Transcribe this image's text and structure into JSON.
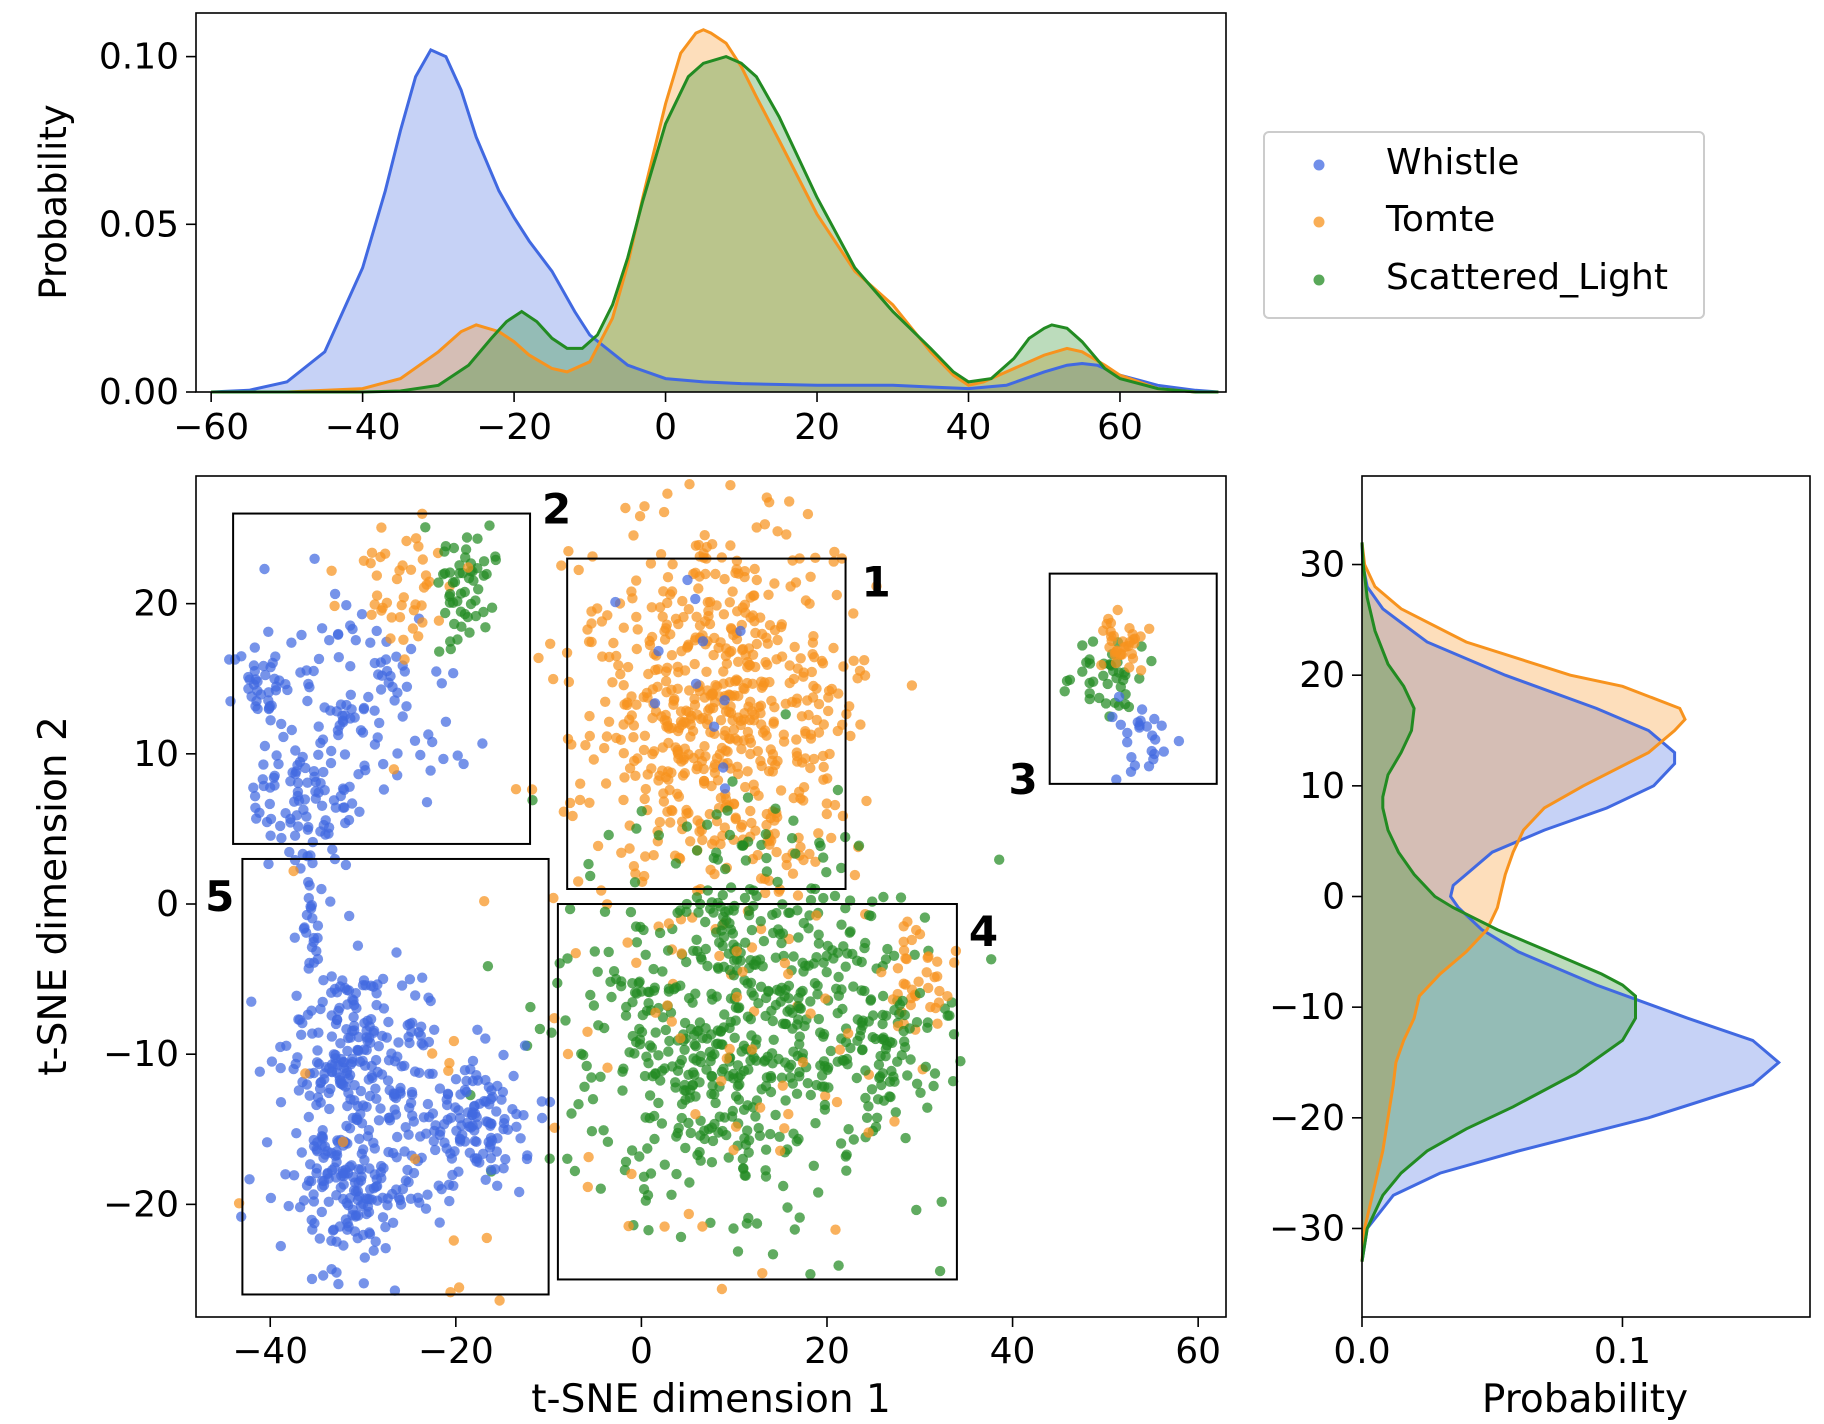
{
  "colors": {
    "whistle": "#4169E1",
    "tomte": "#F7931E",
    "scattered_light": "#228B22"
  },
  "chart_data": [
    {
      "id": "top-kde",
      "type": "area",
      "title": "",
      "xlabel": "",
      "ylabel": "Probability",
      "xlim": [
        -62,
        74
      ],
      "ylim": [
        0,
        0.113
      ],
      "xticks": [
        -60,
        -40,
        -20,
        0,
        20,
        40,
        60
      ],
      "xtick_labels": [
        "−60",
        "−40",
        "−20",
        "0",
        "20",
        "40",
        "60"
      ],
      "yticks": [
        0.0,
        0.05,
        0.1
      ],
      "ytick_labels": [
        "0.00",
        "0.05",
        "0.10"
      ],
      "series": [
        {
          "name": "Whistle",
          "x": [
            -60,
            -55,
            -50,
            -45,
            -40,
            -37,
            -35,
            -33,
            -31,
            -29,
            -27,
            -25,
            -22,
            -20,
            -18,
            -15,
            -12,
            -10,
            -5,
            0,
            5,
            10,
            20,
            30,
            35,
            40,
            45,
            50,
            53,
            55,
            57,
            60,
            65,
            70,
            73
          ],
          "values": [
            0.0,
            0.0005,
            0.003,
            0.012,
            0.037,
            0.06,
            0.078,
            0.094,
            0.102,
            0.1,
            0.09,
            0.076,
            0.06,
            0.052,
            0.045,
            0.036,
            0.024,
            0.017,
            0.008,
            0.004,
            0.003,
            0.0025,
            0.002,
            0.002,
            0.0015,
            0.001,
            0.002,
            0.006,
            0.008,
            0.0085,
            0.008,
            0.005,
            0.002,
            0.0005,
            0.0
          ]
        },
        {
          "name": "Tomte",
          "x": [
            -60,
            -50,
            -40,
            -35,
            -30,
            -27,
            -25,
            -22,
            -20,
            -18,
            -15,
            -13,
            -10,
            -7,
            -5,
            -3,
            0,
            2,
            4,
            5,
            6,
            8,
            10,
            12,
            15,
            20,
            25,
            30,
            35,
            38,
            40,
            42,
            45,
            50,
            53,
            55,
            58,
            60,
            65,
            70,
            73
          ],
          "values": [
            0.0,
            0.0,
            0.001,
            0.004,
            0.012,
            0.018,
            0.02,
            0.018,
            0.015,
            0.011,
            0.007,
            0.006,
            0.009,
            0.022,
            0.038,
            0.058,
            0.086,
            0.101,
            0.107,
            0.108,
            0.107,
            0.104,
            0.097,
            0.088,
            0.075,
            0.053,
            0.036,
            0.026,
            0.012,
            0.005,
            0.002,
            0.003,
            0.006,
            0.011,
            0.013,
            0.012,
            0.008,
            0.005,
            0.001,
            0.0,
            0.0
          ]
        },
        {
          "name": "Scattered_Light",
          "x": [
            -60,
            -50,
            -40,
            -35,
            -30,
            -26,
            -23,
            -21,
            -19,
            -17,
            -15,
            -13,
            -11,
            -9,
            -7,
            -5,
            -3,
            0,
            3,
            5,
            8,
            10,
            12,
            15,
            20,
            25,
            30,
            35,
            38,
            40,
            43,
            46,
            48,
            50,
            51,
            53,
            55,
            58,
            60,
            65,
            70,
            73
          ],
          "values": [
            0.0,
            0.0,
            0.0,
            0.0003,
            0.002,
            0.008,
            0.016,
            0.021,
            0.024,
            0.021,
            0.016,
            0.013,
            0.013,
            0.017,
            0.026,
            0.04,
            0.057,
            0.08,
            0.094,
            0.098,
            0.1,
            0.098,
            0.094,
            0.082,
            0.058,
            0.037,
            0.024,
            0.013,
            0.006,
            0.003,
            0.004,
            0.01,
            0.016,
            0.019,
            0.02,
            0.019,
            0.015,
            0.007,
            0.004,
            0.001,
            0.0,
            0.0
          ]
        }
      ]
    },
    {
      "id": "scatter",
      "type": "scatter",
      "title": "",
      "xlabel": "t-SNE dimension 1",
      "ylabel": "t-SNE dimension 2",
      "xlim": [
        -48,
        63
      ],
      "ylim": [
        -27.5,
        28.5
      ],
      "xticks": [
        -40,
        -20,
        0,
        20,
        40,
        60
      ],
      "xtick_labels": [
        "−40",
        "−20",
        "0",
        "20",
        "40",
        "60"
      ],
      "yticks": [
        -20,
        -10,
        0,
        10,
        20
      ],
      "ytick_labels": [
        "−20",
        "−10",
        "0",
        "10",
        "20"
      ],
      "clusters": [
        {
          "series": "Whistle",
          "cx": -30,
          "cy": 13,
          "sx": 5,
          "sy": 4,
          "n": 120,
          "seed": 11
        },
        {
          "series": "Whistle",
          "cx": -37,
          "cy": 7,
          "sx": 2.8,
          "sy": 2.2,
          "n": 70,
          "seed": 12
        },
        {
          "series": "Whistle",
          "cx": -41,
          "cy": 14.5,
          "sx": 1.2,
          "sy": 1.3,
          "n": 35,
          "seed": 13
        },
        {
          "series": "Tomte",
          "cx": -26,
          "cy": 21,
          "sx": 2.5,
          "sy": 2.2,
          "n": 45,
          "seed": 14
        },
        {
          "series": "Scattered_Light",
          "cx": -19,
          "cy": 21,
          "sx": 1.8,
          "sy": 2.2,
          "n": 55,
          "seed": 15
        },
        {
          "series": "Tomte",
          "cx": 8,
          "cy": 13,
          "sx": 7.5,
          "sy": 6.5,
          "n": 650,
          "seed": 16
        },
        {
          "series": "Whistle",
          "cx": 6,
          "cy": 15,
          "sx": 6,
          "sy": 5,
          "n": 12,
          "seed": 17
        },
        {
          "series": "Scattered_Light",
          "cx": 11,
          "cy": -8,
          "sx": 9,
          "sy": 6.5,
          "n": 640,
          "seed": 18
        },
        {
          "series": "Tomte",
          "cx": 30,
          "cy": -5,
          "sx": 2,
          "sy": 2,
          "n": 40,
          "seed": 19
        },
        {
          "series": "Tomte",
          "cx": 8,
          "cy": -10,
          "sx": 11,
          "sy": 8,
          "n": 55,
          "seed": 20
        },
        {
          "series": "Scattered_Light",
          "cx": 26,
          "cy": -9,
          "sx": 3,
          "sy": 2.5,
          "n": 60,
          "seed": 21
        },
        {
          "series": "Whistle",
          "cx": -31,
          "cy": -10,
          "sx": 4,
          "sy": 3,
          "n": 210,
          "seed": 22
        },
        {
          "series": "Whistle",
          "cx": -31,
          "cy": -18.5,
          "sx": 4,
          "sy": 2.8,
          "n": 190,
          "seed": 23
        },
        {
          "series": "Whistle",
          "cx": -18,
          "cy": -14.5,
          "sx": 3.2,
          "sy": 2.2,
          "n": 130,
          "seed": 24
        },
        {
          "series": "Whistle",
          "cx": -35.5,
          "cy": 0,
          "sx": 0.6,
          "sy": 3,
          "n": 25,
          "seed": 25
        },
        {
          "series": "Tomte",
          "cx": -25,
          "cy": -10,
          "sx": 9,
          "sy": 7,
          "n": 18,
          "seed": 26
        },
        {
          "series": "Scattered_Light",
          "cx": 50.5,
          "cy": 15.5,
          "sx": 2,
          "sy": 1.3,
          "n": 40,
          "seed": 27
        },
        {
          "series": "Tomte",
          "cx": 52,
          "cy": 17.5,
          "sx": 1.2,
          "sy": 1.2,
          "n": 35,
          "seed": 28
        },
        {
          "series": "Whistle",
          "cx": 54,
          "cy": 11,
          "sx": 1.5,
          "sy": 1.5,
          "n": 25,
          "seed": 29
        }
      ],
      "boxes": [
        {
          "label": "1",
          "x0": -8,
          "x1": 22,
          "y0": 1,
          "y1": 23
        },
        {
          "label": "2",
          "x0": -44,
          "x1": -12,
          "y0": 4,
          "y1": 26
        },
        {
          "label": "3",
          "x0": 44,
          "x1": 62,
          "y0": 8,
          "y1": 22
        },
        {
          "label": "4",
          "x0": -9,
          "x1": 34,
          "y0": -25,
          "y1": 0
        },
        {
          "label": "5",
          "x0": -43,
          "x1": -10,
          "y0": -26,
          "y1": 3
        }
      ]
    },
    {
      "id": "right-kde",
      "type": "area",
      "title": "",
      "xlabel": "Probability",
      "ylabel": "",
      "xlim": [
        0,
        0.172
      ],
      "ylim": [
        -38,
        38
      ],
      "xticks": [
        0.0,
        0.1
      ],
      "xtick_labels": [
        "0.0",
        "0.1"
      ],
      "yticks": [
        -30,
        -20,
        -10,
        0,
        10,
        20,
        30
      ],
      "ytick_labels": [
        "−30",
        "−20",
        "−10",
        "0",
        "10",
        "20",
        "30"
      ],
      "series": [
        {
          "name": "Whistle",
          "y": [
            -33,
            -30,
            -27,
            -25,
            -23,
            -20,
            -17,
            -15,
            -13,
            -11,
            -8,
            -5,
            -3,
            -1,
            0,
            1,
            2,
            4,
            6,
            8,
            10,
            12,
            13,
            15,
            17,
            20,
            23,
            26,
            28,
            30,
            32
          ],
          "values": [
            0.0,
            0.002,
            0.012,
            0.03,
            0.06,
            0.11,
            0.15,
            0.16,
            0.15,
            0.125,
            0.09,
            0.06,
            0.046,
            0.037,
            0.034,
            0.035,
            0.04,
            0.05,
            0.07,
            0.094,
            0.112,
            0.12,
            0.12,
            0.11,
            0.09,
            0.055,
            0.025,
            0.008,
            0.002,
            0.0003,
            0.0
          ]
        },
        {
          "name": "Tomte",
          "y": [
            -33,
            -30,
            -27,
            -25,
            -23,
            -20,
            -17,
            -15,
            -13,
            -11,
            -9,
            -7,
            -5,
            -3,
            -1,
            0,
            2,
            4,
            6,
            7,
            8,
            10,
            13,
            15,
            16,
            17,
            19,
            20,
            23,
            26,
            28,
            30,
            32
          ],
          "values": [
            0.0,
            0.001,
            0.004,
            0.006,
            0.008,
            0.01,
            0.012,
            0.013,
            0.016,
            0.02,
            0.022,
            0.03,
            0.04,
            0.048,
            0.052,
            0.053,
            0.055,
            0.058,
            0.062,
            0.066,
            0.07,
            0.085,
            0.11,
            0.12,
            0.124,
            0.122,
            0.1,
            0.08,
            0.04,
            0.015,
            0.005,
            0.001,
            0.0
          ]
        },
        {
          "name": "Scattered_Light",
          "y": [
            -33,
            -30,
            -27,
            -25,
            -23,
            -21,
            -19,
            -16,
            -13,
            -11,
            -9,
            -8,
            -7,
            -5,
            -3,
            -1,
            0,
            2,
            4,
            6,
            8,
            9,
            11,
            13,
            15,
            17,
            19,
            21,
            24,
            27,
            30,
            32
          ],
          "values": [
            0.0,
            0.002,
            0.008,
            0.015,
            0.025,
            0.04,
            0.058,
            0.082,
            0.1,
            0.105,
            0.105,
            0.1,
            0.092,
            0.072,
            0.052,
            0.035,
            0.028,
            0.02,
            0.014,
            0.01,
            0.008,
            0.008,
            0.01,
            0.015,
            0.019,
            0.02,
            0.016,
            0.01,
            0.005,
            0.002,
            0.0005,
            0.0
          ]
        }
      ]
    }
  ],
  "legend": {
    "position": "top-right",
    "items": [
      {
        "label": "Whistle",
        "series": "whistle"
      },
      {
        "label": "Tomte",
        "series": "tomte"
      },
      {
        "label": "Scattered_Light",
        "series": "scattered_light"
      }
    ]
  }
}
